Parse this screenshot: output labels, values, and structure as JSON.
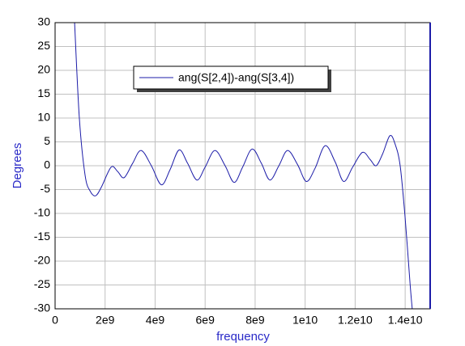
{
  "chart_data": {
    "type": "line",
    "xlabel": "frequency",
    "ylabel": "Degrees",
    "x": [
      780000000.0,
      970000000.0,
      1200000000.0,
      1400000000.0,
      1620000000.0,
      1850000000.0,
      2240000000.0,
      2500000000.0,
      2760000000.0,
      3100000000.0,
      3440000000.0,
      3850000000.0,
      4250000000.0,
      4600000000.0,
      4960000000.0,
      5300000000.0,
      5670000000.0,
      6000000000.0,
      6390000000.0,
      6800000000.0,
      7160000000.0,
      7500000000.0,
      7880000000.0,
      8250000000.0,
      8590000000.0,
      8950000000.0,
      9300000000.0,
      9700000000.0,
      10050000000.0,
      10400000000.0,
      10800000000.0,
      11200000000.0,
      11540000000.0,
      11900000000.0,
      12290000000.0,
      12600000000.0,
      12840000000.0,
      13100000000.0,
      13390000000.0,
      13600000000.0,
      13800000000.0,
      14000000000.0,
      14200000000.0,
      14300000000.0
    ],
    "series": [
      {
        "name": "ang(S[2,4])-ang(S[3,4])",
        "color": "#1c1ca8",
        "values": [
          30,
          10,
          -2,
          -5.3,
          -6.3,
          -4.5,
          -0.3,
          -1.2,
          -2.5,
          0.5,
          3.2,
          0,
          -4,
          -0.8,
          3.3,
          0.5,
          -3,
          -0.3,
          3.2,
          0,
          -3.5,
          -0.3,
          3.5,
          0.5,
          -3,
          0,
          3.2,
          0.2,
          -3.3,
          -0.5,
          4.2,
          0.8,
          -3.3,
          -0.3,
          2.8,
          1.3,
          0,
          2.5,
          6.3,
          4.5,
          0,
          -11,
          -25,
          -31
        ]
      }
    ],
    "xlim": [
      0,
      15000000000.0
    ],
    "ylim": [
      -30,
      30
    ],
    "xticks": [
      0,
      {
        "value": 2000000000.0,
        "label": "2e9"
      },
      {
        "value": 4000000000.0,
        "label": "4e9"
      },
      {
        "value": 6000000000.0,
        "label": "6e9"
      },
      {
        "value": 8000000000.0,
        "label": "8e9"
      },
      {
        "value": 10000000000.0,
        "label": "1e10"
      },
      {
        "value": 12000000000.0,
        "label": "1.2e10"
      },
      {
        "value": 14000000000.0,
        "label": "1.4e10"
      }
    ],
    "yticks": [
      -30,
      -25,
      -20,
      -15,
      -10,
      -5,
      0,
      5,
      10,
      15,
      20,
      25,
      30
    ],
    "grid": true
  }
}
